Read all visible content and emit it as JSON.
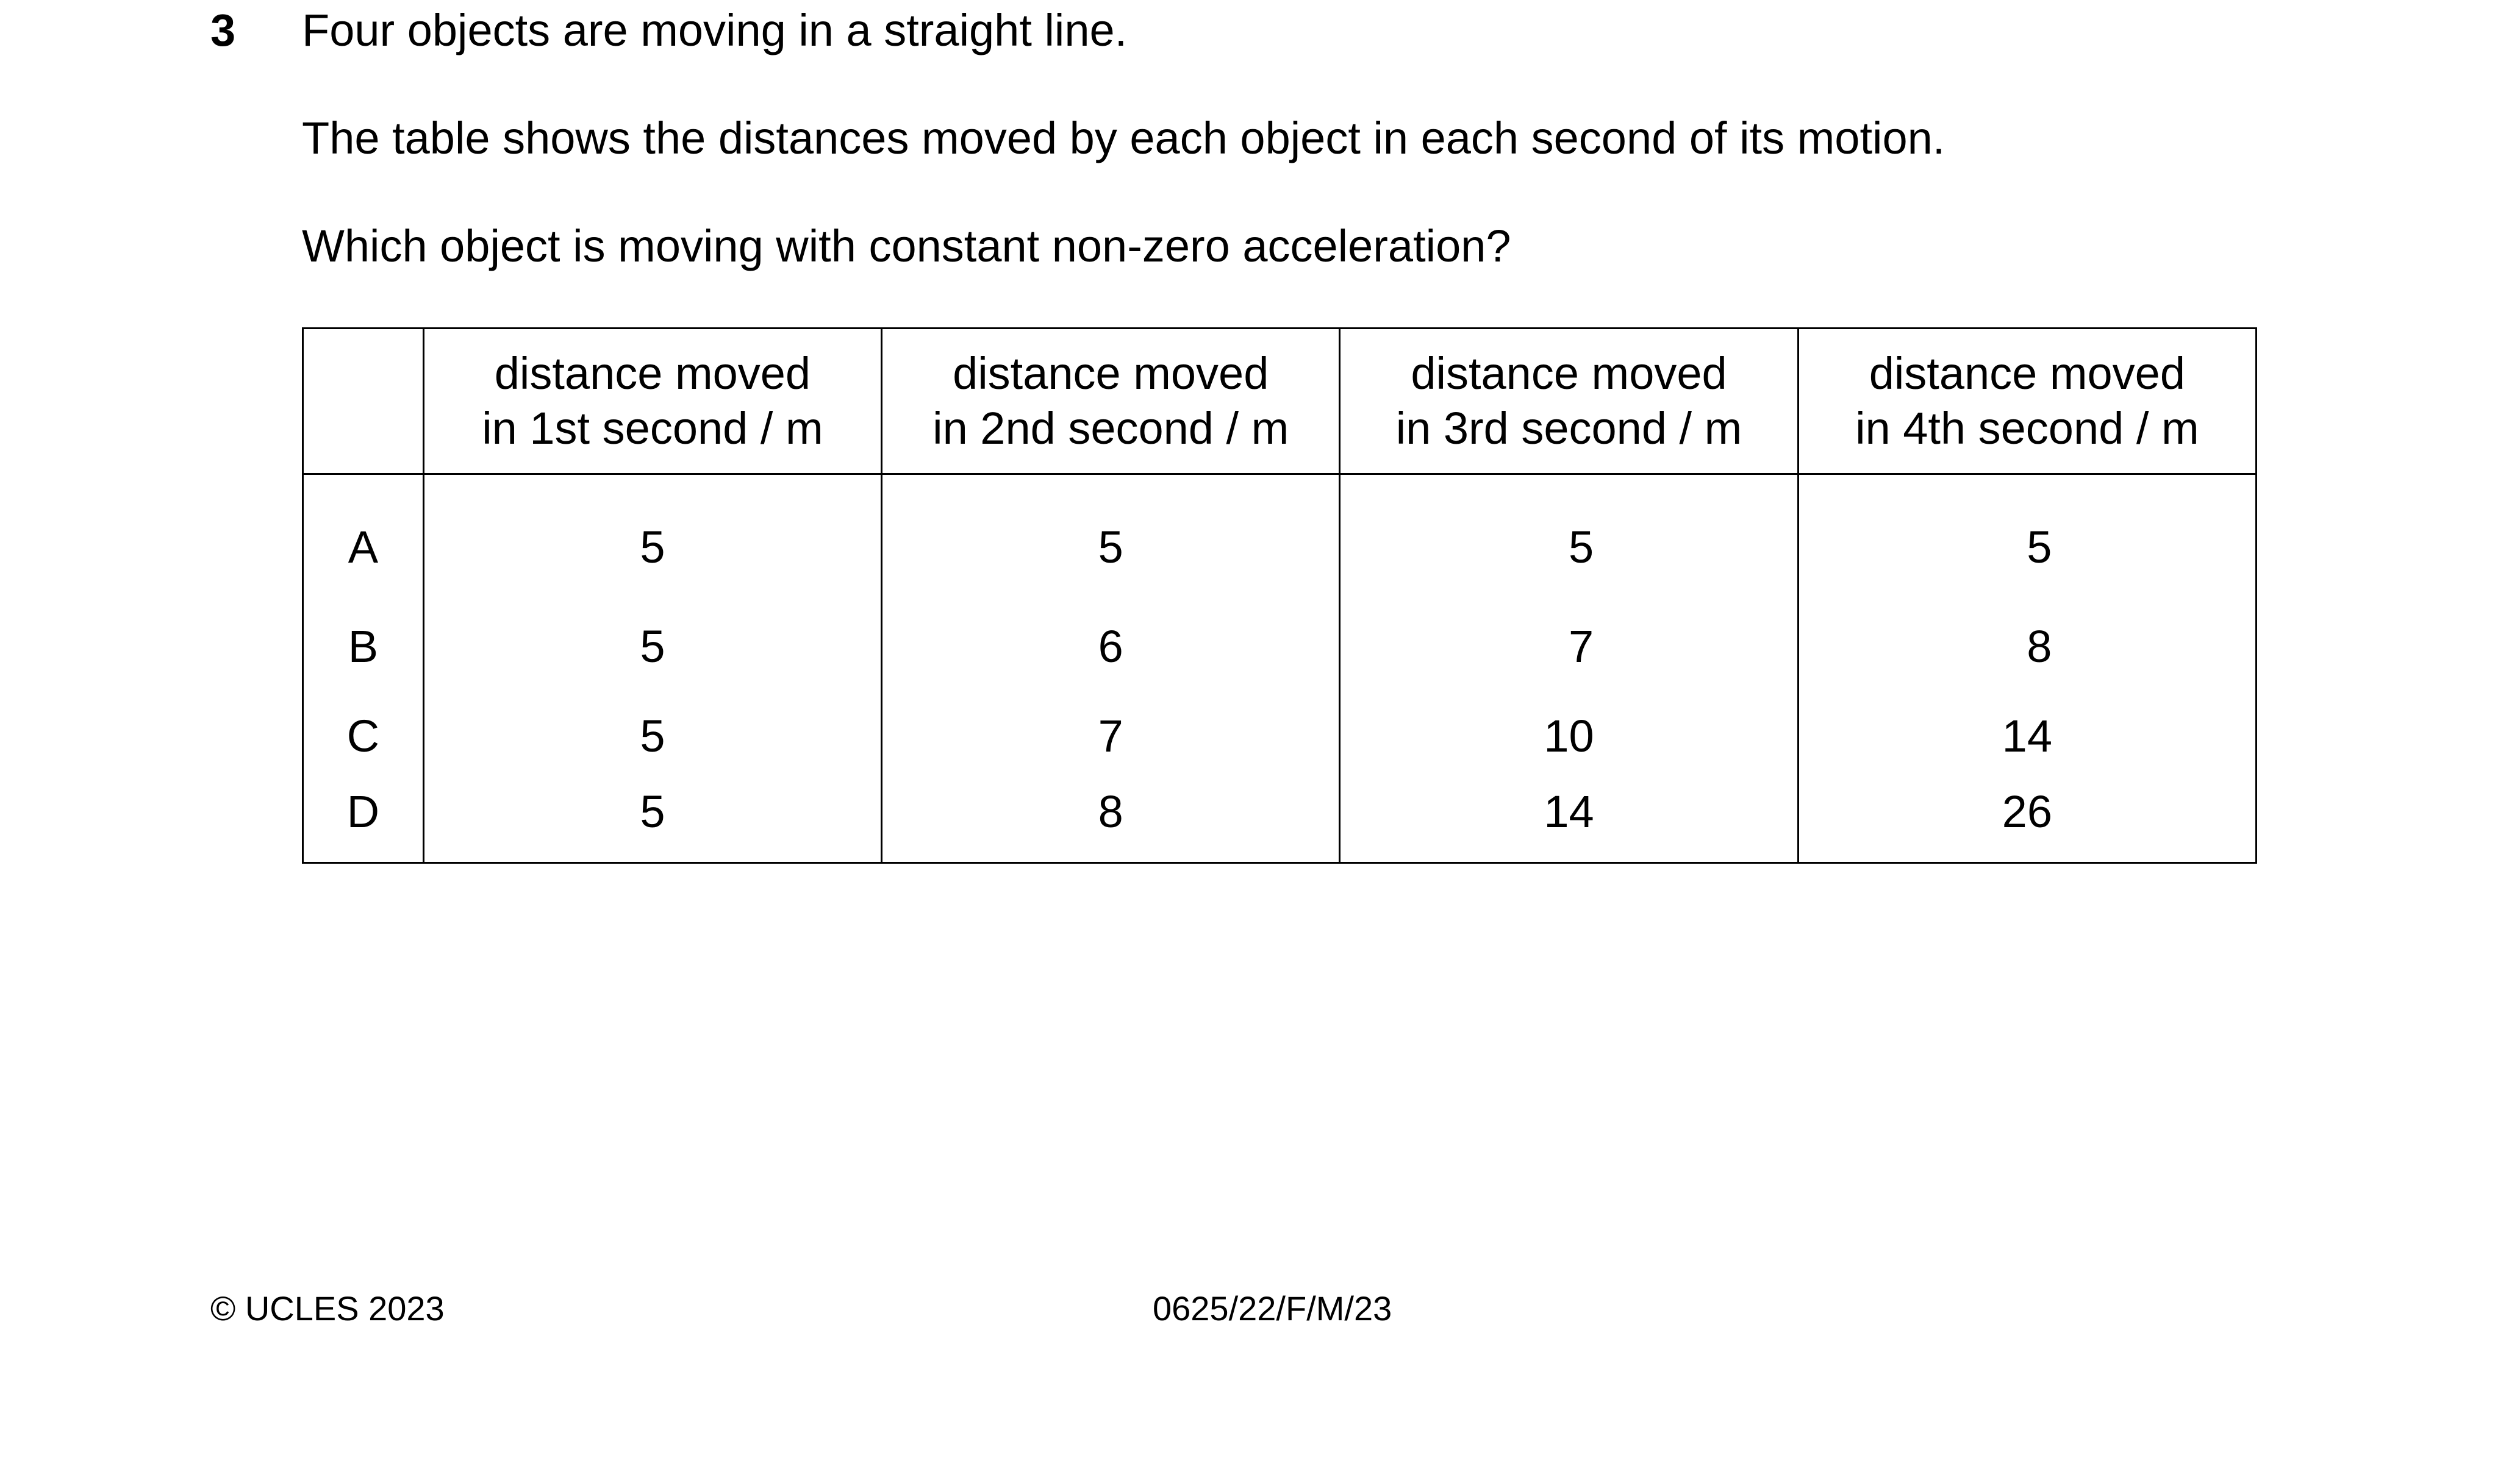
{
  "question": {
    "number": "3",
    "lines": [
      "Four objects are moving in a straight line.",
      "The table shows the distances moved by each object in each second of its motion.",
      "Which object is moving with constant non-zero acceleration?"
    ]
  },
  "table": {
    "headers": [
      {
        "line1": "distance moved",
        "line2": "in 1st second / m"
      },
      {
        "line1": "distance moved",
        "line2": "in 2nd second / m"
      },
      {
        "line1": "distance moved",
        "line2": "in 3rd second / m"
      },
      {
        "line1": "distance moved",
        "line2": "in 4th second / m"
      }
    ],
    "rows": [
      {
        "label": "A",
        "values": [
          "5",
          "5",
          "5",
          "5"
        ]
      },
      {
        "label": "B",
        "values": [
          "5",
          "6",
          "7",
          "8"
        ]
      },
      {
        "label": "C",
        "values": [
          "5",
          "7",
          "10",
          "14"
        ]
      },
      {
        "label": "D",
        "values": [
          "5",
          "8",
          "14",
          "26"
        ]
      }
    ]
  },
  "footer": {
    "copyright": "© UCLES 2023",
    "code": "0625/22/F/M/23"
  }
}
